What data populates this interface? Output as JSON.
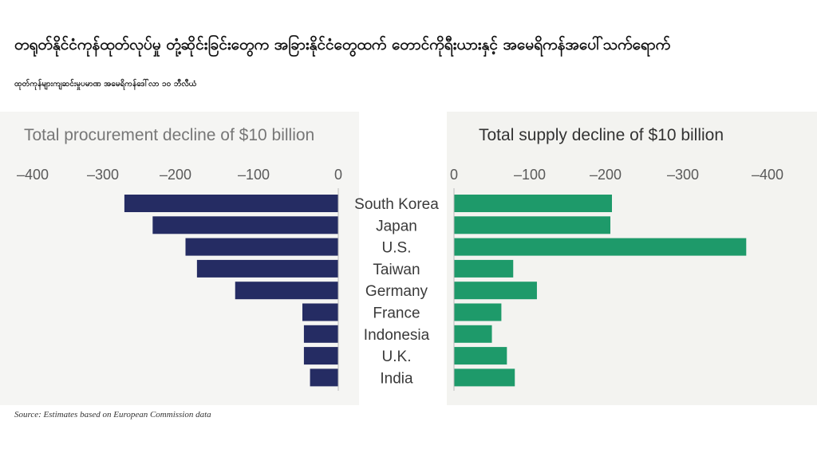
{
  "header": {
    "title": "တရုတ်နိုင်ငံကုန်ထုတ်လုပ်မှု တုံ့ဆိုင်းခြင်းတွေက အခြားနိုင်ငံတွေထက် တောင်ကိုရီးယားနှင့် အမေရိကန်အပေါ်သက်ရောက်",
    "subtitle": "ထုတ်ကုန်များကျဆင်းမှုပမာဏ အမေရိကန်ဒေါ်လာ ၁၀ ဘီလီယံ"
  },
  "footer": {
    "source": "Source: Estimates based on European Commission data"
  },
  "colors": {
    "procurement": "#252c63",
    "supply": "#1e9a6a",
    "procurement_title": "#777777",
    "supply_title": "#333333"
  },
  "chart_data": {
    "type": "bar",
    "categories": [
      "South Korea",
      "Japan",
      "U.S.",
      "Taiwan",
      "Germany",
      "France",
      "Indonesia",
      "U.K.",
      "India"
    ],
    "panels": [
      {
        "title": "Total procurement decline of $10 billion",
        "ticks": [
          "–400",
          "–300",
          "–200",
          "–100",
          "0"
        ],
        "xlim": [
          -400,
          0
        ],
        "values": [
          -280,
          -243,
          -200,
          -185,
          -135,
          -47,
          -45,
          -45,
          -37
        ]
      },
      {
        "title": "Total supply decline of $10 billion",
        "ticks": [
          "0",
          "–100",
          "–200",
          "–300",
          "–400"
        ],
        "xlim": [
          0,
          -400
        ],
        "values": [
          -200,
          -198,
          -370,
          -75,
          -105,
          -60,
          -48,
          -67,
          -77
        ]
      }
    ]
  }
}
